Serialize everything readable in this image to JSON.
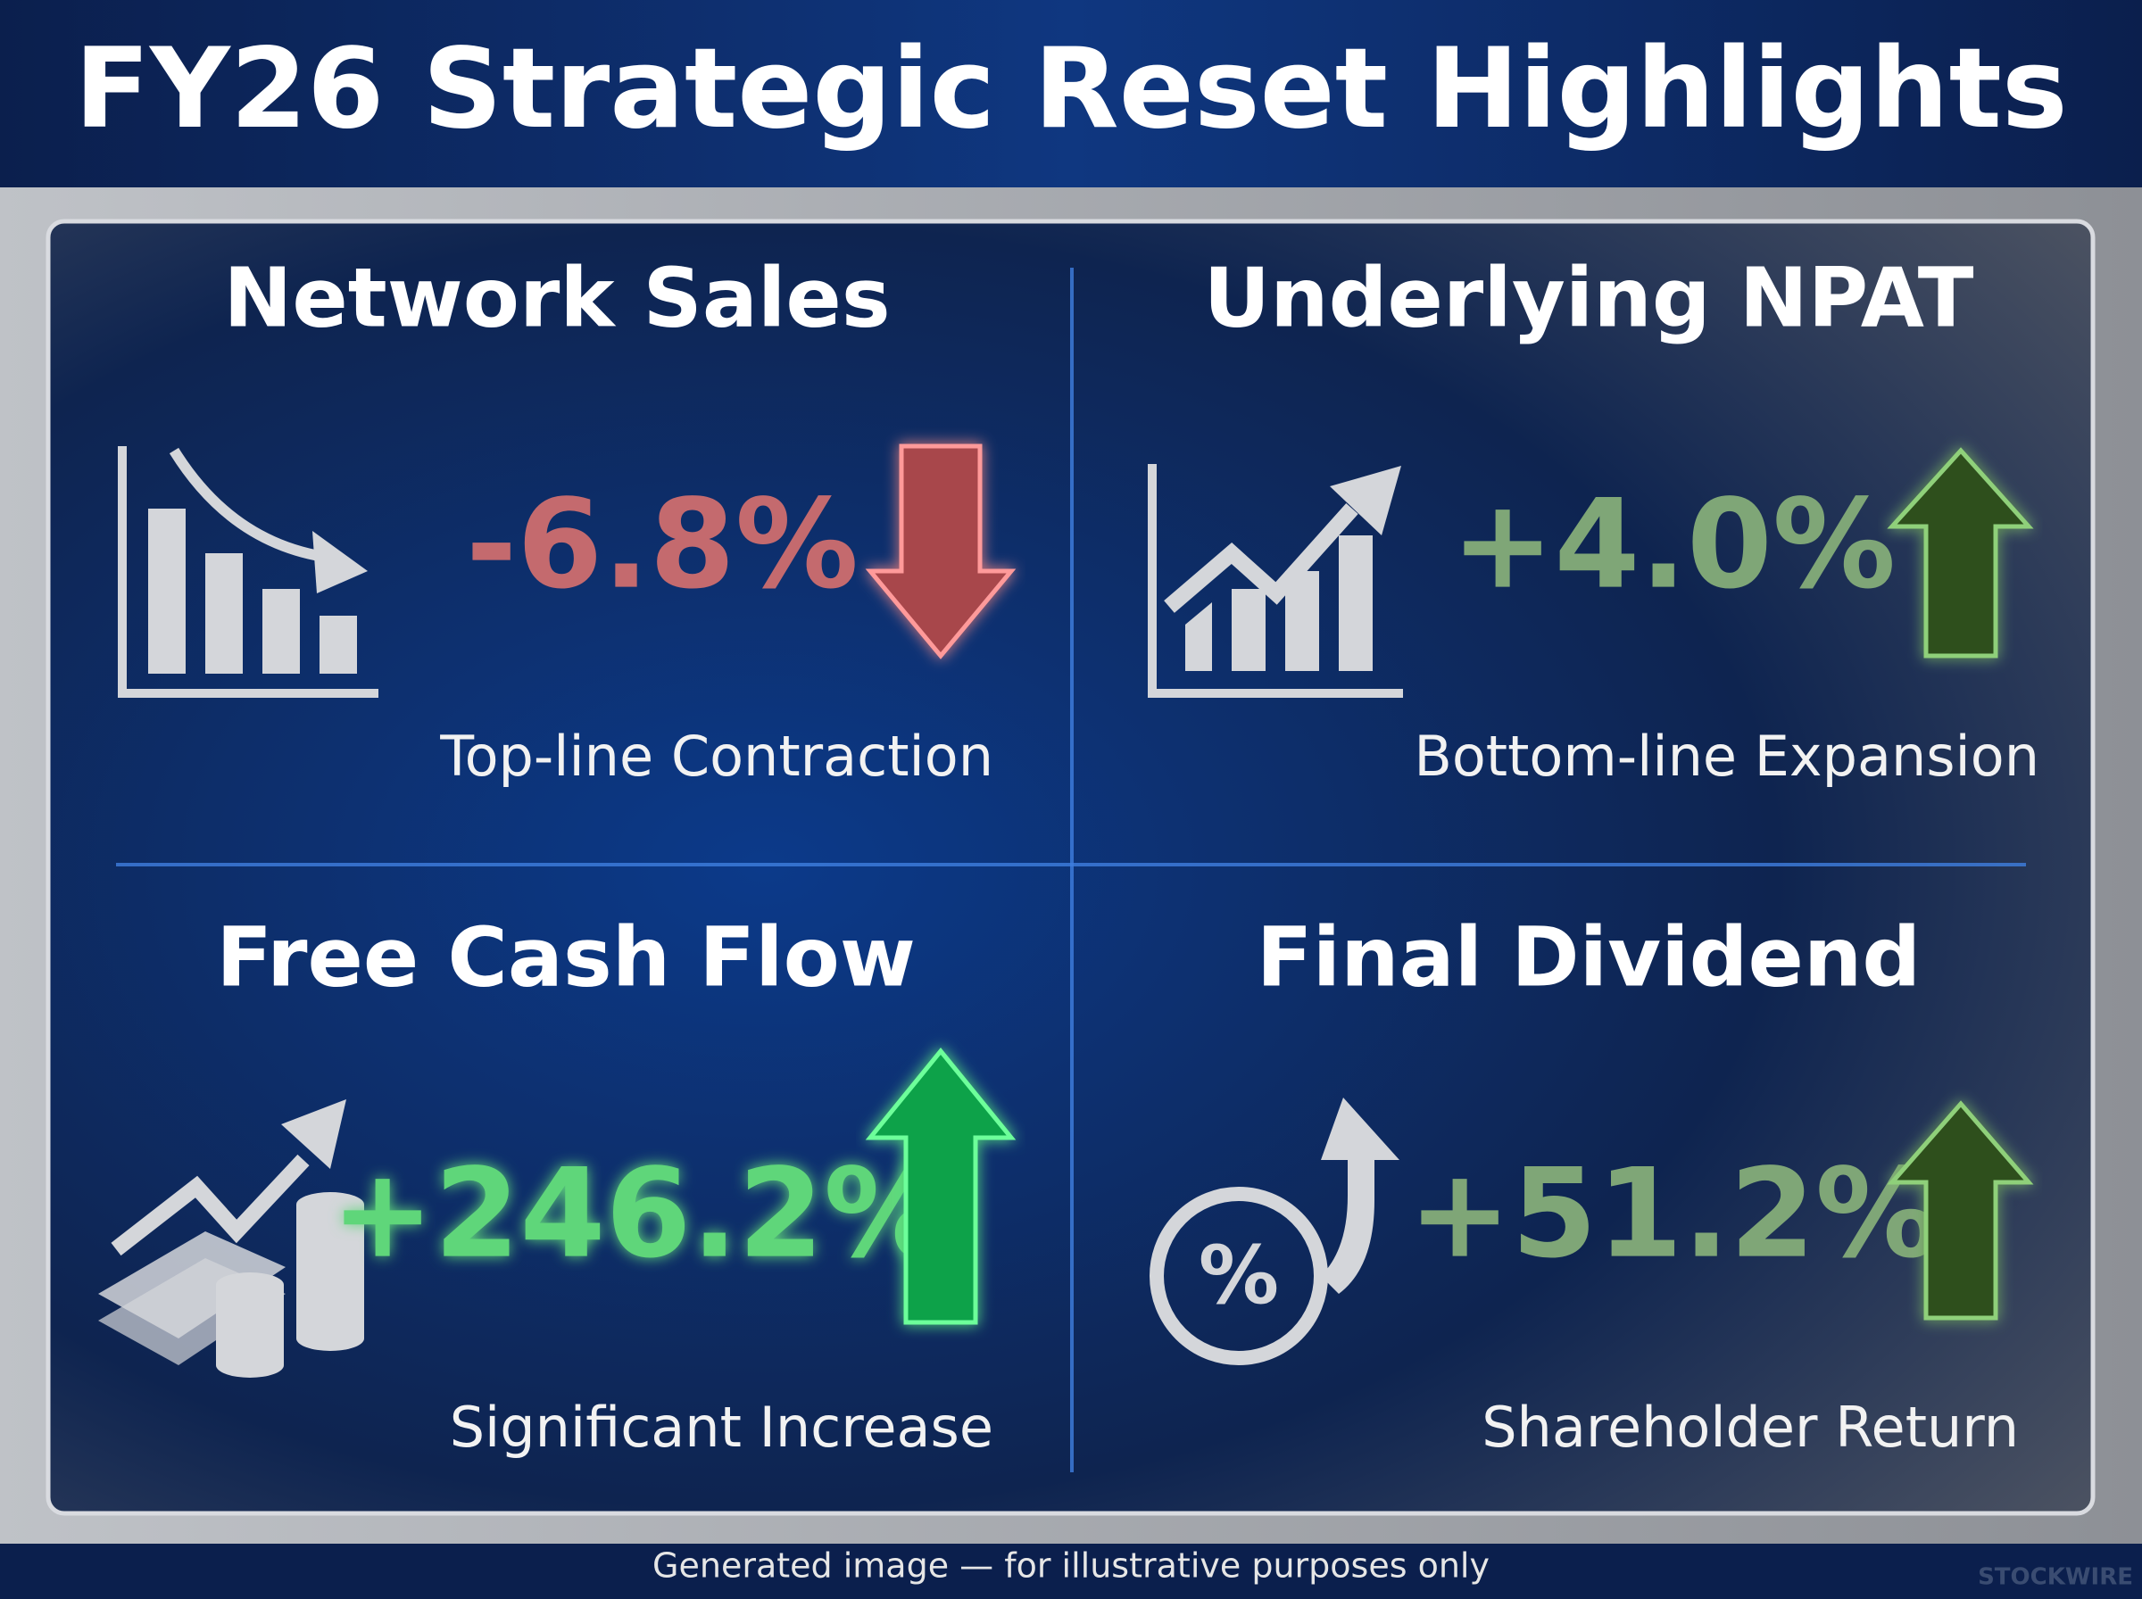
{
  "header": {
    "title": "FY26 Strategic Reset Highlights"
  },
  "quadrants": [
    {
      "title": "Network Sales",
      "value": "-6.8%",
      "caption": "Top-line Contraction"
    },
    {
      "title": "Underlying NPAT",
      "value": "+4.0%",
      "caption": "Bottom-line Expansion"
    },
    {
      "title": "Free Cash Flow",
      "value": "+246.2%",
      "caption": "Significant Increase"
    },
    {
      "title": "Final Dividend",
      "value": "+51.2%",
      "caption": "Shareholder Return"
    }
  ],
  "footer": {
    "note": "Generated image — for illustrative purposes only",
    "watermark": "STOCKWIRE"
  }
}
